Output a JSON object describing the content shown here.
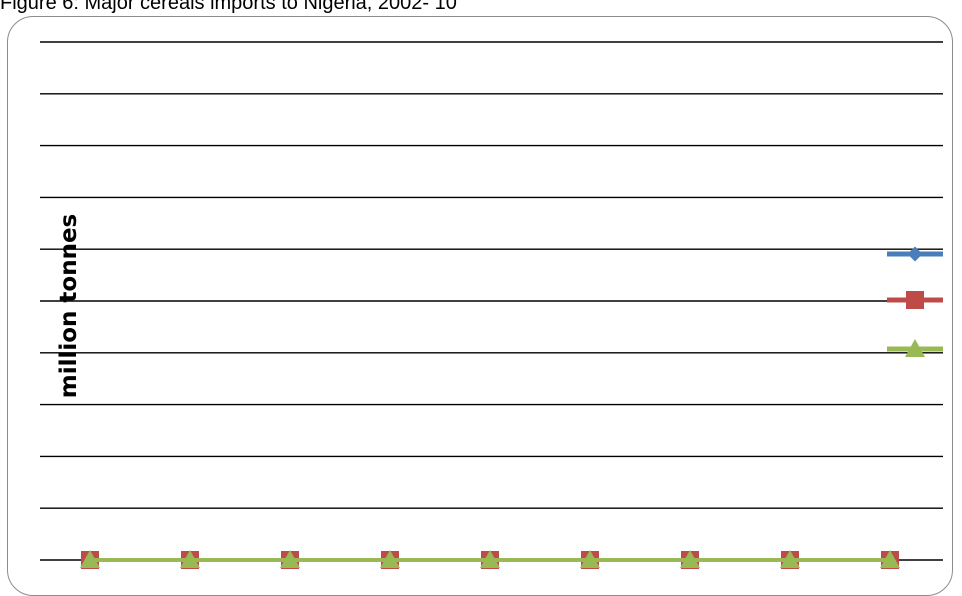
{
  "figure": {
    "caption": "Figure 6: Major cereals imports to Nigeria, 2002- 10"
  },
  "chart_data": {
    "type": "line",
    "title": "",
    "xlabel": "",
    "ylabel": "million tonnes",
    "grid": true,
    "ylim": [
      0,
      10
    ],
    "y_gridlines": 10,
    "categories": [
      "",
      "",
      "",
      "",
      "",
      "",
      "",
      "",
      ""
    ],
    "series": [
      {
        "color": "#4a7ebb",
        "marker": "diamond",
        "values": [
          0,
          0,
          0,
          0,
          0,
          0,
          0,
          0,
          0
        ]
      },
      {
        "color": "#be4b48",
        "marker": "square",
        "values": [
          0,
          0,
          0,
          0,
          0,
          0,
          0,
          0,
          0
        ]
      },
      {
        "color": "#98b954",
        "marker": "triangle",
        "values": [
          0,
          0,
          0,
          0,
          0,
          0,
          0,
          0,
          0
        ]
      }
    ],
    "legend": {
      "position": "right",
      "entries": [
        "",
        "",
        ""
      ]
    }
  }
}
